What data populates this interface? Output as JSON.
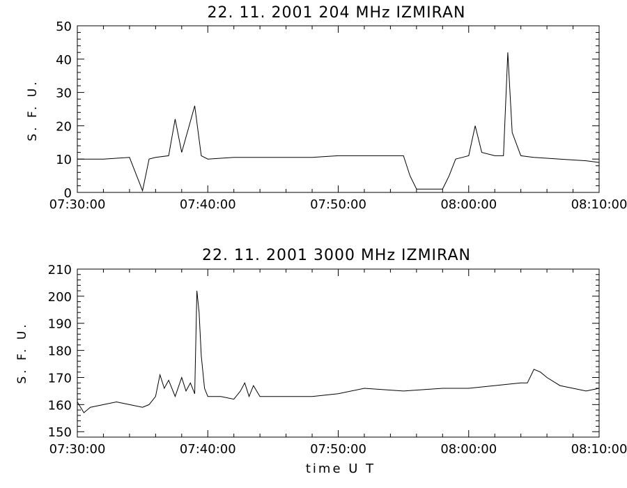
{
  "chart_data": [
    {
      "type": "line",
      "title": "22.  11.  2001    204 MHz    IZMIRAN",
      "ylabel": "S. F. U.",
      "xlabel": "",
      "x_unit": "UT time",
      "xlim": [
        "07:30:00",
        "08:10:00"
      ],
      "ylim": [
        0,
        50
      ],
      "x_ticks": [
        "07:30:00",
        "07:40:00",
        "07:50:00",
        "08:00:00",
        "08:10:00"
      ],
      "y_ticks": [
        "0",
        "10",
        "20",
        "30",
        "40",
        "50"
      ],
      "grid": false,
      "series": [
        {
          "x": [
            "07:30:00",
            "07:32:00",
            "07:34:00",
            "07:35:00",
            "07:35:30",
            "07:36:00",
            "07:37:00",
            "07:37:30",
            "07:38:00",
            "07:38:30",
            "07:39:00",
            "07:39:30",
            "07:40:00",
            "07:42:00",
            "07:45:00",
            "07:48:00",
            "07:50:00",
            "07:52:30",
            "07:55:00",
            "07:55:30",
            "07:56:00",
            "07:57:00",
            "07:58:00",
            "07:58:30",
            "07:59:00",
            "07:59:30",
            "08:00:00",
            "08:00:30",
            "08:01:00",
            "08:02:00",
            "08:02:40",
            "08:03:00",
            "08:03:20",
            "08:04:00",
            "08:05:00",
            "08:07:00",
            "08:09:00",
            "08:10:00"
          ],
          "values": [
            10,
            10,
            10.5,
            0.5,
            10,
            10.5,
            11,
            22,
            12,
            19,
            26,
            11,
            10,
            10.5,
            10.5,
            10.5,
            11,
            11,
            11,
            5,
            1,
            1,
            1,
            5,
            10,
            10.5,
            11,
            20,
            12,
            11,
            11,
            42,
            18,
            11,
            10.5,
            10,
            9.5,
            9
          ]
        }
      ]
    },
    {
      "type": "line",
      "title": "22.  11.  2001    3000 MHz    IZMIRAN",
      "ylabel": "S. F. U.",
      "xlabel": "time   U T",
      "xlim": [
        "07:30:00",
        "08:10:00"
      ],
      "ylim": [
        148,
        210
      ],
      "x_ticks": [
        "07:30:00",
        "07:40:00",
        "07:50:00",
        "08:00:00",
        "08:10:00"
      ],
      "y_ticks": [
        "150",
        "160",
        "170",
        "180",
        "190",
        "200",
        "210"
      ],
      "grid": false,
      "series": [
        {
          "x": [
            "07:30:00",
            "07:30:30",
            "07:31:00",
            "07:32:00",
            "07:33:00",
            "07:34:00",
            "07:35:00",
            "07:35:30",
            "07:36:00",
            "07:36:20",
            "07:36:40",
            "07:37:00",
            "07:37:30",
            "07:38:00",
            "07:38:20",
            "07:38:40",
            "07:39:00",
            "07:39:10",
            "07:39:20",
            "07:39:30",
            "07:39:45",
            "07:40:00",
            "07:41:00",
            "07:42:00",
            "07:42:30",
            "07:42:50",
            "07:43:10",
            "07:43:30",
            "07:44:00",
            "07:46:00",
            "07:48:00",
            "07:50:00",
            "07:52:00",
            "07:55:00",
            "07:58:00",
            "08:00:00",
            "08:02:00",
            "08:04:00",
            "08:04:30",
            "08:05:00",
            "08:05:30",
            "08:06:00",
            "08:07:00",
            "08:08:00",
            "08:09:00",
            "08:10:00"
          ],
          "values": [
            161,
            157,
            159,
            160,
            161,
            160,
            159,
            160,
            163,
            171,
            166,
            169,
            163,
            170,
            165,
            168,
            164,
            202,
            194,
            178,
            166,
            163,
            163,
            162,
            165,
            168,
            163,
            167,
            163,
            163,
            163,
            164,
            166,
            165,
            166,
            166,
            167,
            168,
            168,
            173,
            172,
            170,
            167,
            166,
            165,
            166
          ]
        }
      ]
    }
  ]
}
